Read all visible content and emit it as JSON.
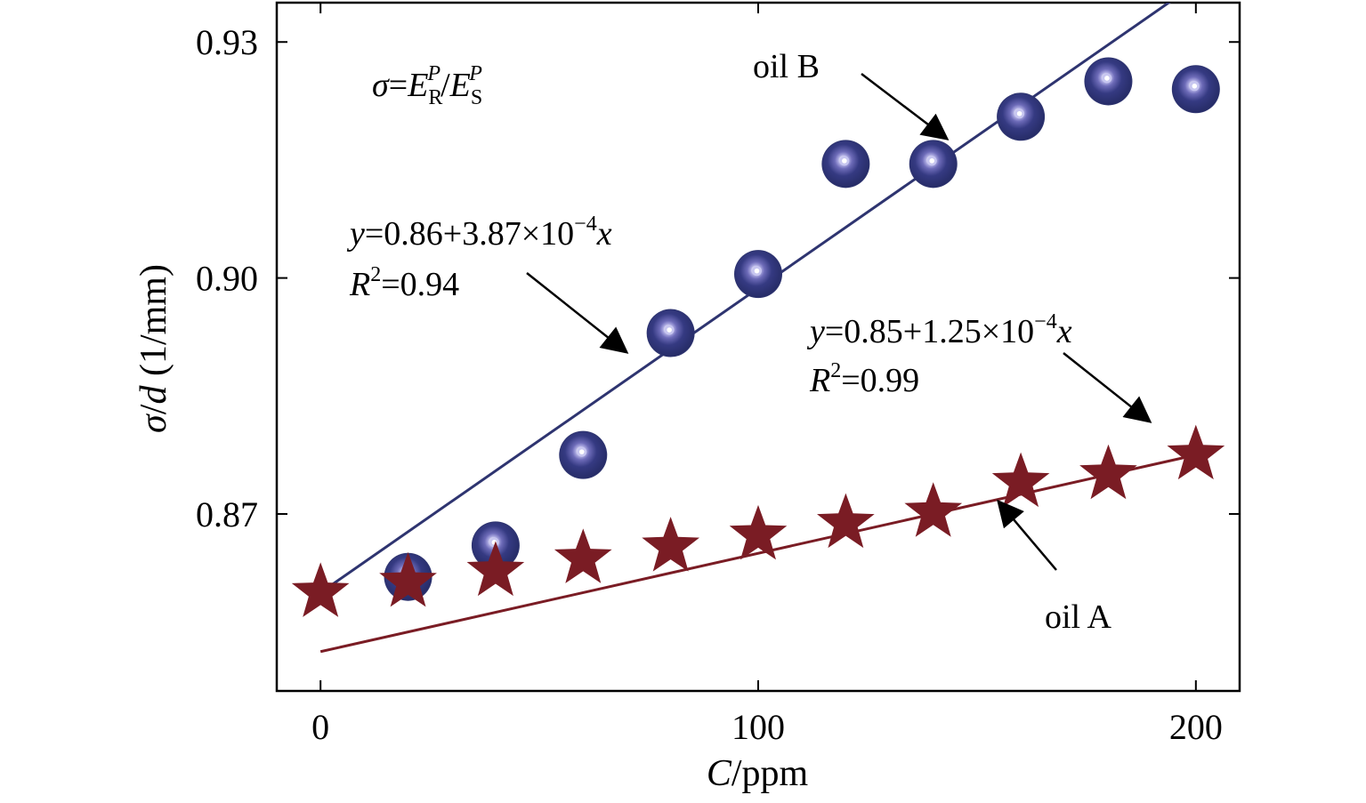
{
  "chart_data": {
    "type": "scatter",
    "xlabel_var": "C",
    "xlabel_unit": "/ppm",
    "ylabel_var1": "σ",
    "ylabel_sep": "/",
    "ylabel_var2": "d",
    "ylabel_unit": " (1/mm)",
    "xlim": [
      -10,
      210
    ],
    "ylim": [
      0.8475,
      0.935
    ],
    "xticks": [
      0,
      100,
      200
    ],
    "xtick_labels": [
      "0",
      "100",
      "200"
    ],
    "yticks": [
      0.87,
      0.9,
      0.93
    ],
    "ytick_labels": [
      "0.87",
      "0.90",
      "0.93"
    ],
    "grid": false,
    "series": [
      {
        "name": "oil B",
        "marker": "circle",
        "color": "#2e3470",
        "x": [
          20,
          40,
          60,
          80,
          100,
          120,
          140,
          160,
          180,
          200
        ],
        "y": [
          0.862,
          0.866,
          0.8775,
          0.893,
          0.9005,
          0.9145,
          0.9145,
          0.9205,
          0.925,
          0.924
        ]
      },
      {
        "name": "oil A",
        "marker": "star",
        "color": "#7a1c24",
        "x": [
          0,
          20,
          40,
          60,
          80,
          100,
          120,
          140,
          160,
          180,
          200
        ],
        "y": [
          0.86,
          0.8613,
          0.8627,
          0.8643,
          0.8658,
          0.8673,
          0.8688,
          0.8702,
          0.874,
          0.875,
          0.8775
        ]
      }
    ],
    "fits": [
      {
        "series": "oil B",
        "intercept": 0.86,
        "slope": 0.000387,
        "x_range": [
          0,
          200
        ],
        "color": "#2e3470"
      },
      {
        "series": "oil A",
        "intercept": 0.8525,
        "slope": 0.000125,
        "x_range": [
          0,
          200
        ],
        "color": "#7a1c24"
      }
    ],
    "annotations": {
      "sigma_def": {
        "lhs": "σ",
        "eq": "=",
        "E": "E",
        "sub_R": "R",
        "sub_S": "S",
        "sup_P": "P",
        "slash": "/"
      },
      "fit_b": {
        "y": "y",
        "eq_text": "=0.86+3.87×10",
        "exp": "−4",
        "x": "x",
        "R": "R",
        "sq": "2",
        "r2_text": "=0.94"
      },
      "fit_a": {
        "y": "y",
        "eq_text": "=0.85+1.25×10",
        "exp": "−4",
        "x": "x",
        "R": "R",
        "sq": "2",
        "r2_text": "=0.99"
      },
      "label_b": "oil B",
      "label_a": "oil A"
    }
  }
}
